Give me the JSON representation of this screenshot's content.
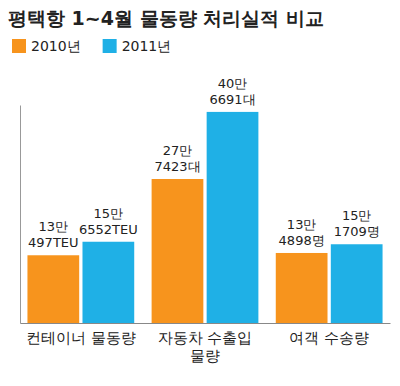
{
  "chart_data": {
    "type": "bar",
    "title": "평택항 1~4월 물동량 처리실적 비교",
    "categories": [
      "컨테이너 물동량",
      "자동차 수출입\n물량",
      "여객 수송량"
    ],
    "series": [
      {
        "name": "2010년",
        "color": "#f7941d",
        "values": [
          130497,
          277423,
          134898
        ],
        "value_labels": [
          "13만\n497TEU",
          "27만\n7423대",
          "13만\n4898명"
        ]
      },
      {
        "name": "2011년",
        "color": "#1fb0e6",
        "values": [
          156552,
          406691,
          151709
        ],
        "value_labels": [
          "15만\n6552TEU",
          "40만\n6691대",
          "15만\n1709명"
        ]
      }
    ],
    "ylim": [
      0,
      420000
    ],
    "tick_labels": false,
    "data_labels": true,
    "legend": "top-left",
    "grid": false
  }
}
